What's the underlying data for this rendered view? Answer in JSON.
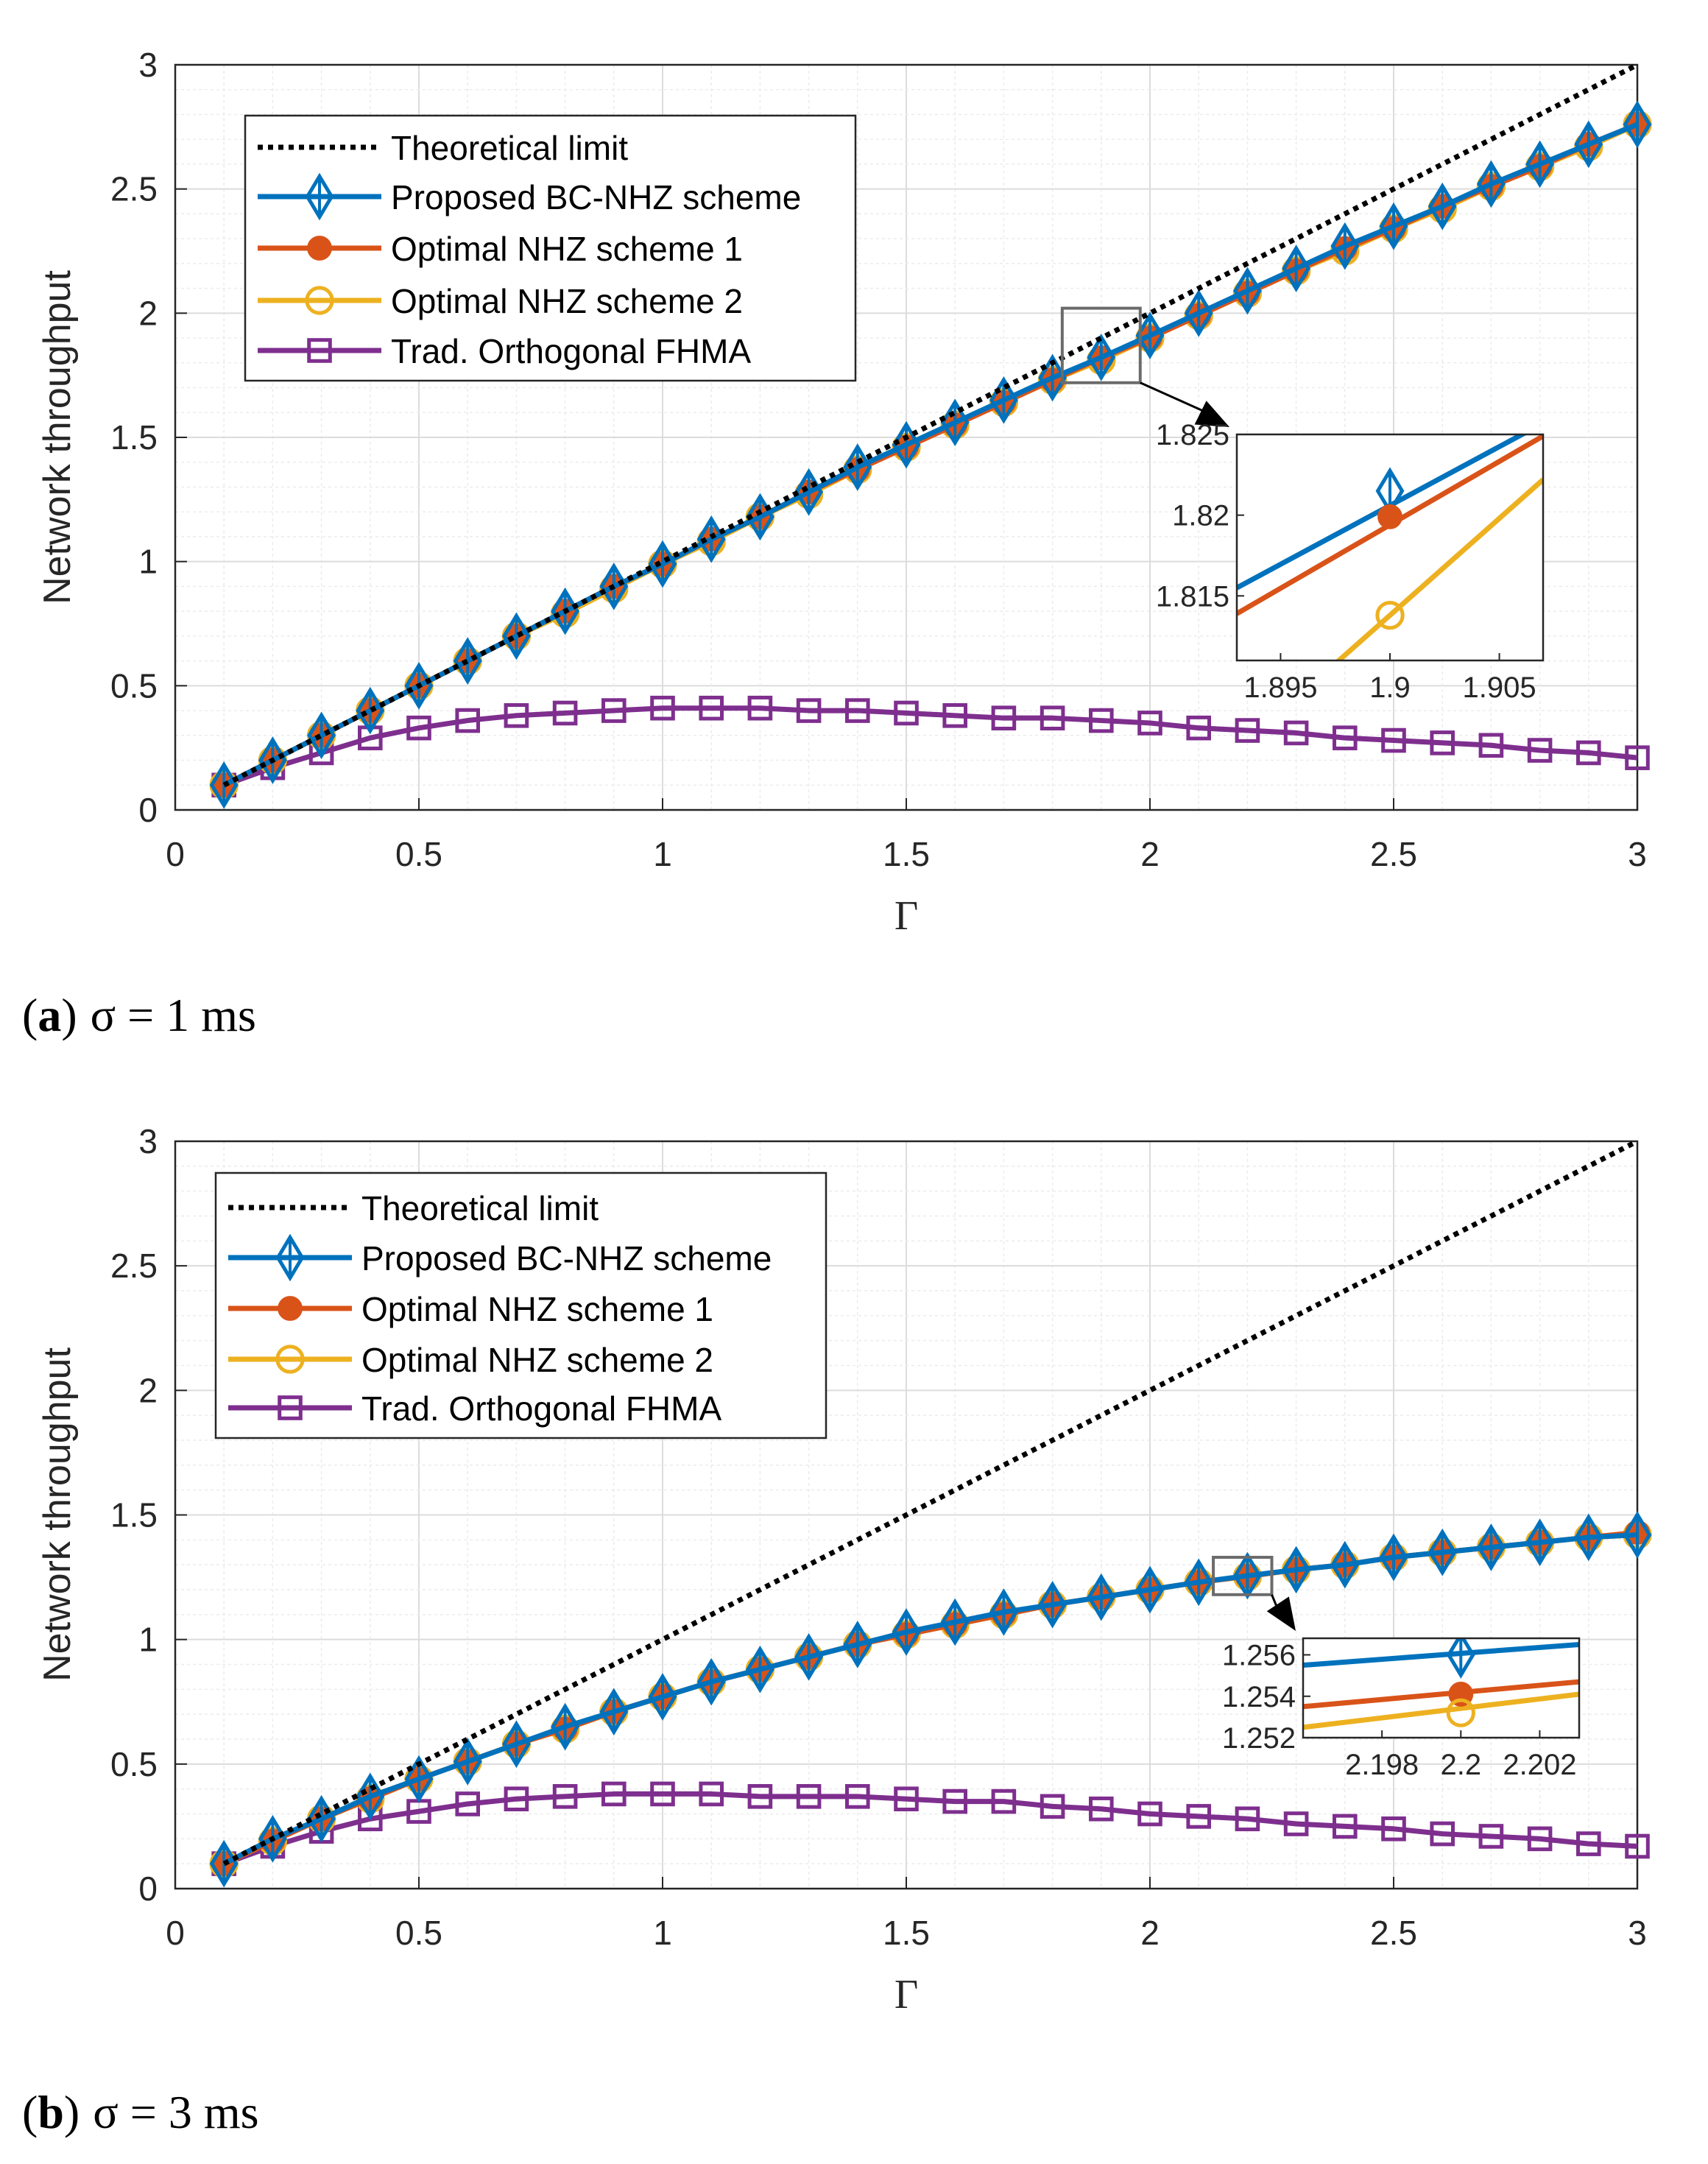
{
  "chart_data": [
    {
      "type": "line",
      "caption": {
        "label": "a",
        "open": "(",
        "close": ")",
        "text": "σ = 1 ms"
      },
      "xlabel": "Γ",
      "ylabel": "Network throughput",
      "xlim": [
        0,
        3
      ],
      "ylim": [
        0,
        3
      ],
      "xticks": [
        "0",
        "0.5",
        "1",
        "1.5",
        "2",
        "2.5",
        "3"
      ],
      "yticks": [
        "0",
        "0.5",
        "1",
        "1.5",
        "2",
        "2.5",
        "3"
      ],
      "grid": true,
      "legend_position": "top-left",
      "x": [
        0.1,
        0.2,
        0.3,
        0.4,
        0.5,
        0.6,
        0.7,
        0.8,
        0.9,
        1.0,
        1.1,
        1.2,
        1.3,
        1.4,
        1.5,
        1.6,
        1.7,
        1.8,
        1.9,
        2.0,
        2.1,
        2.2,
        2.3,
        2.4,
        2.5,
        2.6,
        2.7,
        2.8,
        2.9,
        3.0
      ],
      "series": [
        {
          "name": "Theoretical limit",
          "color": "#000000",
          "style": "dotted",
          "marker": "none",
          "values": [
            0.1,
            0.2,
            0.3,
            0.4,
            0.5,
            0.6,
            0.7,
            0.8,
            0.9,
            1.0,
            1.1,
            1.2,
            1.3,
            1.4,
            1.5,
            1.6,
            1.7,
            1.8,
            1.9,
            2.0,
            2.1,
            2.2,
            2.3,
            2.4,
            2.5,
            2.6,
            2.7,
            2.8,
            2.9,
            3.0
          ]
        },
        {
          "name": "Proposed BC-NHZ scheme",
          "color": "#0072bd",
          "style": "solid",
          "marker": "diamond",
          "values": [
            0.1,
            0.2,
            0.3,
            0.4,
            0.5,
            0.6,
            0.7,
            0.8,
            0.9,
            0.99,
            1.09,
            1.18,
            1.28,
            1.38,
            1.47,
            1.56,
            1.65,
            1.74,
            1.822,
            1.91,
            2.0,
            2.09,
            2.18,
            2.27,
            2.35,
            2.43,
            2.52,
            2.6,
            2.68,
            2.76
          ]
        },
        {
          "name": "Optimal NHZ scheme 1",
          "color": "#d95319",
          "style": "solid",
          "marker": "filled-circle",
          "values": [
            0.1,
            0.2,
            0.3,
            0.4,
            0.5,
            0.6,
            0.7,
            0.8,
            0.9,
            0.99,
            1.09,
            1.18,
            1.28,
            1.37,
            1.46,
            1.55,
            1.64,
            1.73,
            1.82,
            1.9,
            1.99,
            2.08,
            2.17,
            2.26,
            2.34,
            2.43,
            2.51,
            2.59,
            2.68,
            2.76
          ]
        },
        {
          "name": "Optimal NHZ scheme 2",
          "color": "#edb120",
          "style": "solid",
          "marker": "open-circle",
          "values": [
            0.1,
            0.2,
            0.3,
            0.4,
            0.5,
            0.6,
            0.7,
            0.79,
            0.89,
            0.99,
            1.08,
            1.18,
            1.27,
            1.37,
            1.46,
            1.55,
            1.64,
            1.73,
            1.81,
            1.9,
            1.99,
            2.08,
            2.17,
            2.25,
            2.34,
            2.42,
            2.51,
            2.59,
            2.67,
            2.76
          ]
        },
        {
          "name": "Trad. Orthogonal FHMA",
          "color": "#7e2f8e",
          "style": "solid",
          "marker": "square",
          "values": [
            0.1,
            0.17,
            0.23,
            0.29,
            0.33,
            0.36,
            0.38,
            0.39,
            0.4,
            0.41,
            0.41,
            0.41,
            0.4,
            0.4,
            0.39,
            0.38,
            0.37,
            0.37,
            0.36,
            0.35,
            0.33,
            0.32,
            0.31,
            0.29,
            0.28,
            0.27,
            0.26,
            0.24,
            0.23,
            0.21
          ]
        }
      ],
      "zoom": {
        "source_x": [
          1.82,
          1.98
        ],
        "source_y": [
          1.72,
          2.02
        ],
        "xlim": [
          1.893,
          1.907
        ],
        "ylim": [
          1.811,
          1.825
        ],
        "xticks": [
          "1.895",
          "1.9",
          "1.905"
        ],
        "yticks": [
          "1.815",
          "1.82",
          "1.825"
        ],
        "lines": [
          {
            "color": "#0072bd",
            "x": [
              1.893,
              1.907
            ],
            "y": [
              1.8155,
              1.8257
            ]
          },
          {
            "color": "#d95319",
            "x": [
              1.893,
              1.907
            ],
            "y": [
              1.8139,
              1.8249
            ]
          },
          {
            "color": "#edb120",
            "x": [
              1.8975,
              1.907
            ],
            "y": [
              1.8108,
              1.8222
            ]
          }
        ],
        "markers": [
          {
            "series": 1,
            "x": 1.9,
            "y": 1.8215
          },
          {
            "series": 2,
            "x": 1.9,
            "y": 1.8199
          },
          {
            "series": 3,
            "x": 1.9,
            "y": 1.8138
          }
        ]
      }
    },
    {
      "type": "line",
      "caption": {
        "label": "b",
        "open": "(",
        "close": ")",
        "text": "σ = 3 ms"
      },
      "xlabel": "Γ",
      "ylabel": "Network throughput",
      "xlim": [
        0,
        3
      ],
      "ylim": [
        0,
        3
      ],
      "xticks": [
        "0",
        "0.5",
        "1",
        "1.5",
        "2",
        "2.5",
        "3"
      ],
      "yticks": [
        "0",
        "0.5",
        "1",
        "1.5",
        "2",
        "2.5",
        "3"
      ],
      "grid": true,
      "legend_position": "top-left",
      "x": [
        0.1,
        0.2,
        0.3,
        0.4,
        0.5,
        0.6,
        0.7,
        0.8,
        0.9,
        1.0,
        1.1,
        1.2,
        1.3,
        1.4,
        1.5,
        1.6,
        1.7,
        1.8,
        1.9,
        2.0,
        2.1,
        2.2,
        2.3,
        2.4,
        2.5,
        2.6,
        2.7,
        2.8,
        2.9,
        3.0
      ],
      "series": [
        {
          "name": "Theoretical limit",
          "color": "#000000",
          "style": "dotted",
          "marker": "none",
          "values": [
            0.1,
            0.2,
            0.3,
            0.4,
            0.5,
            0.6,
            0.7,
            0.8,
            0.9,
            1.0,
            1.1,
            1.2,
            1.3,
            1.4,
            1.5,
            1.6,
            1.7,
            1.8,
            1.9,
            2.0,
            2.1,
            2.2,
            2.3,
            2.4,
            2.5,
            2.6,
            2.7,
            2.8,
            2.9,
            3.0
          ]
        },
        {
          "name": "Proposed BC-NHZ scheme",
          "color": "#0072bd",
          "style": "solid",
          "marker": "diamond",
          "values": [
            0.1,
            0.2,
            0.28,
            0.37,
            0.44,
            0.51,
            0.58,
            0.65,
            0.71,
            0.77,
            0.83,
            0.88,
            0.93,
            0.98,
            1.03,
            1.07,
            1.11,
            1.14,
            1.17,
            1.2,
            1.23,
            1.256,
            1.28,
            1.3,
            1.33,
            1.35,
            1.37,
            1.39,
            1.41,
            1.42
          ]
        },
        {
          "name": "Optimal NHZ scheme 1",
          "color": "#d95319",
          "style": "solid",
          "marker": "filled-circle",
          "values": [
            0.1,
            0.19,
            0.28,
            0.36,
            0.44,
            0.51,
            0.58,
            0.64,
            0.71,
            0.77,
            0.83,
            0.88,
            0.93,
            0.98,
            1.02,
            1.06,
            1.1,
            1.14,
            1.17,
            1.2,
            1.23,
            1.254,
            1.28,
            1.3,
            1.33,
            1.35,
            1.37,
            1.39,
            1.41,
            1.43
          ]
        },
        {
          "name": "Optimal NHZ scheme 2",
          "color": "#edb120",
          "style": "solid",
          "marker": "open-circle",
          "values": [
            0.1,
            0.19,
            0.28,
            0.36,
            0.44,
            0.51,
            0.58,
            0.64,
            0.71,
            0.77,
            0.83,
            0.88,
            0.93,
            0.98,
            1.02,
            1.06,
            1.1,
            1.14,
            1.17,
            1.2,
            1.23,
            1.253,
            1.28,
            1.3,
            1.33,
            1.35,
            1.37,
            1.39,
            1.41,
            1.42
          ]
        },
        {
          "name": "Trad. Orthogonal FHMA",
          "color": "#7e2f8e",
          "style": "solid",
          "marker": "square",
          "values": [
            0.1,
            0.17,
            0.23,
            0.28,
            0.31,
            0.34,
            0.36,
            0.37,
            0.38,
            0.38,
            0.38,
            0.37,
            0.37,
            0.37,
            0.36,
            0.35,
            0.35,
            0.33,
            0.32,
            0.3,
            0.29,
            0.28,
            0.26,
            0.25,
            0.24,
            0.22,
            0.21,
            0.2,
            0.18,
            0.17
          ]
        }
      ],
      "zoom": {
        "source_x": [
          2.13,
          2.25
        ],
        "source_y": [
          1.18,
          1.33
        ],
        "xlim": [
          2.196,
          2.203
        ],
        "ylim": [
          1.252,
          1.2568
        ],
        "xticks": [
          "2.198",
          "2.2",
          "2.202"
        ],
        "yticks": [
          "1.252",
          "1.254",
          "1.256"
        ],
        "lines": [
          {
            "color": "#0072bd",
            "x": [
              2.196,
              2.203
            ],
            "y": [
              1.2555,
              1.2565
            ]
          },
          {
            "color": "#d95319",
            "x": [
              2.196,
              2.203
            ],
            "y": [
              1.2535,
              1.2547
            ]
          },
          {
            "color": "#edb120",
            "x": [
              2.196,
              2.203
            ],
            "y": [
              1.2525,
              1.2541
            ]
          }
        ],
        "markers": [
          {
            "series": 1,
            "x": 2.2,
            "y": 1.256
          },
          {
            "series": 2,
            "x": 2.2,
            "y": 1.2541
          },
          {
            "series": 3,
            "x": 2.2,
            "y": 1.2532
          }
        ]
      }
    }
  ]
}
